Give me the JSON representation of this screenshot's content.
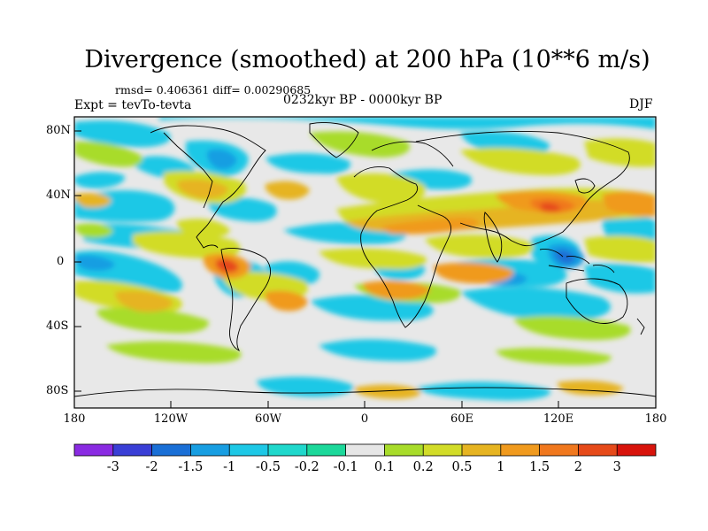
{
  "title": "Divergence (smoothed) at 200 hPa (10**6 m/s)",
  "stats": "rmsd= 0.406361 diff= 0.00290685",
  "experiment": "Expt = tevTo-tevta",
  "period": "0232kyr BP - 0000kyr BP",
  "season": "DJF",
  "map": {
    "y_ticks": [
      "80N",
      "40N",
      "0",
      "40S",
      "80S"
    ],
    "x_ticks": [
      "180",
      "120W",
      "60W",
      "0",
      "60E",
      "120E",
      "180"
    ]
  },
  "colorbar": {
    "labels": [
      "-3",
      "-2",
      "-1.5",
      "-1",
      "-0.5",
      "-0.2",
      "-0.1",
      "0.1",
      "0.2",
      "0.5",
      "1",
      "1.5",
      "2",
      "3"
    ],
    "colors": [
      "#8a2be2",
      "#3a3fd6",
      "#1a6fd6",
      "#189ee2",
      "#1ec8e6",
      "#20d8cc",
      "#1cd89a",
      "#e6e6e6",
      "#a8dc2a",
      "#d2dc28",
      "#e6b422",
      "#f09a1e",
      "#f0781e",
      "#e64a1a",
      "#d8140c"
    ]
  }
}
